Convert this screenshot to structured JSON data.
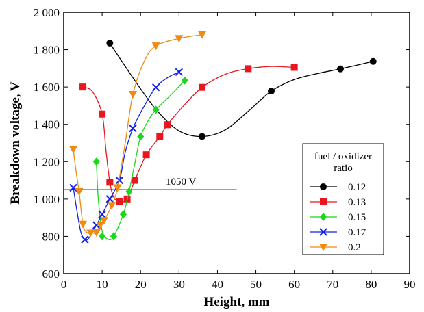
{
  "chart_data": {
    "type": "line",
    "xlabel": "Height, mm",
    "ylabel": "Breakdown voltage, V",
    "xlim": [
      0,
      90
    ],
    "ylim": [
      600,
      2000
    ],
    "xticks": [
      0,
      10,
      20,
      30,
      40,
      50,
      60,
      70,
      80,
      90
    ],
    "yticks": [
      600,
      800,
      1000,
      1200,
      1400,
      1600,
      1800,
      2000
    ],
    "ytick_labels": [
      "600",
      "800",
      "1 000",
      "1 200",
      "1 400",
      "1 600",
      "1 800",
      "2 000"
    ],
    "grid": false,
    "legend": {
      "title": "fuel / oxidizer ratio",
      "title_lines": [
        "fuel / oxidizer",
        "ratio"
      ],
      "placement": "right"
    },
    "reference_line": {
      "y": 1050,
      "x_range": [
        0,
        45
      ],
      "label": "1050 V"
    },
    "series": [
      {
        "name": "0.12",
        "color": "#000000",
        "marker": "circle",
        "points": [
          [
            12,
            1835
          ],
          [
            36,
            1335
          ],
          [
            54,
            1578
          ],
          [
            72,
            1697
          ],
          [
            80.5,
            1737
          ]
        ],
        "curve": [
          [
            12,
            1835
          ],
          [
            18,
            1650
          ],
          [
            24,
            1480
          ],
          [
            30,
            1365
          ],
          [
            36,
            1335
          ],
          [
            42,
            1370
          ],
          [
            48,
            1470
          ],
          [
            54,
            1578
          ],
          [
            60,
            1640
          ],
          [
            66,
            1672
          ],
          [
            72,
            1697
          ],
          [
            80.5,
            1737
          ]
        ]
      },
      {
        "name": "0.13",
        "color": "#e8161e",
        "marker": "square",
        "points": [
          [
            5,
            1600
          ],
          [
            10,
            1455
          ],
          [
            12,
            1090
          ],
          [
            14.5,
            985
          ],
          [
            16.5,
            1000
          ],
          [
            18.5,
            1100
          ],
          [
            21.5,
            1237
          ],
          [
            25,
            1335
          ],
          [
            27,
            1398
          ],
          [
            36,
            1598
          ],
          [
            48,
            1698
          ],
          [
            60,
            1705
          ]
        ],
        "curve": [
          [
            5,
            1600
          ],
          [
            7.5,
            1575
          ],
          [
            10,
            1455
          ],
          [
            11,
            1260
          ],
          [
            12,
            1090
          ],
          [
            13,
            1010
          ],
          [
            14.5,
            985
          ],
          [
            16.5,
            1000
          ],
          [
            18.5,
            1100
          ],
          [
            21.5,
            1237
          ],
          [
            25,
            1335
          ],
          [
            27,
            1398
          ],
          [
            31,
            1495
          ],
          [
            36,
            1598
          ],
          [
            42,
            1668
          ],
          [
            48,
            1698
          ],
          [
            54,
            1710
          ],
          [
            60,
            1705
          ]
        ]
      },
      {
        "name": "0.15",
        "color": "#18d818",
        "marker": "diamond",
        "points": [
          [
            8.5,
            1200
          ],
          [
            10,
            800
          ],
          [
            13,
            800
          ],
          [
            15.5,
            918
          ],
          [
            17,
            1040
          ],
          [
            20,
            1335
          ],
          [
            24,
            1478
          ],
          [
            31.5,
            1635
          ]
        ],
        "curve": [
          [
            8.5,
            1200
          ],
          [
            9,
            1000
          ],
          [
            10,
            830
          ],
          [
            11.5,
            785
          ],
          [
            13,
            800
          ],
          [
            15.5,
            918
          ],
          [
            17,
            1040
          ],
          [
            18.5,
            1190
          ],
          [
            20,
            1335
          ],
          [
            22,
            1420
          ],
          [
            24,
            1478
          ],
          [
            28,
            1560
          ],
          [
            31.5,
            1635
          ]
        ]
      },
      {
        "name": "0.17",
        "color": "#1020e8",
        "marker": "x",
        "points": [
          [
            2.5,
            1060
          ],
          [
            5.5,
            783
          ],
          [
            8.5,
            860
          ],
          [
            10,
            918
          ],
          [
            12,
            1000
          ],
          [
            14.5,
            1100
          ],
          [
            18,
            1378
          ],
          [
            24,
            1598
          ],
          [
            30,
            1680
          ]
        ],
        "curve": [
          [
            2.5,
            1060
          ],
          [
            3.5,
            930
          ],
          [
            4.5,
            820
          ],
          [
            5.5,
            783
          ],
          [
            6.5,
            790
          ],
          [
            8.5,
            860
          ],
          [
            10,
            918
          ],
          [
            12,
            1000
          ],
          [
            14.5,
            1100
          ],
          [
            16,
            1250
          ],
          [
            18,
            1378
          ],
          [
            21,
            1500
          ],
          [
            24,
            1598
          ],
          [
            27,
            1650
          ],
          [
            30,
            1680
          ]
        ]
      },
      {
        "name": "0.2",
        "color": "#f08a10",
        "marker": "triangle-down",
        "points": [
          [
            2.5,
            1265
          ],
          [
            4,
            1040
          ],
          [
            5,
            865
          ],
          [
            7,
            818
          ],
          [
            8.5,
            820
          ],
          [
            9.5,
            860
          ],
          [
            10.5,
            885
          ],
          [
            12.5,
            965
          ],
          [
            14,
            1060
          ],
          [
            18,
            1560
          ],
          [
            24,
            1820
          ],
          [
            30,
            1860
          ],
          [
            36,
            1880
          ]
        ],
        "curve": [
          [
            2.5,
            1265
          ],
          [
            3.2,
            1150
          ],
          [
            4,
            1040
          ],
          [
            5,
            865
          ],
          [
            6,
            822
          ],
          [
            7,
            818
          ],
          [
            8.5,
            820
          ],
          [
            9.5,
            860
          ],
          [
            10.5,
            885
          ],
          [
            12.5,
            965
          ],
          [
            14,
            1060
          ],
          [
            16,
            1300
          ],
          [
            18,
            1560
          ],
          [
            21,
            1740
          ],
          [
            24,
            1820
          ],
          [
            30,
            1860
          ],
          [
            36,
            1880
          ]
        ]
      }
    ]
  }
}
